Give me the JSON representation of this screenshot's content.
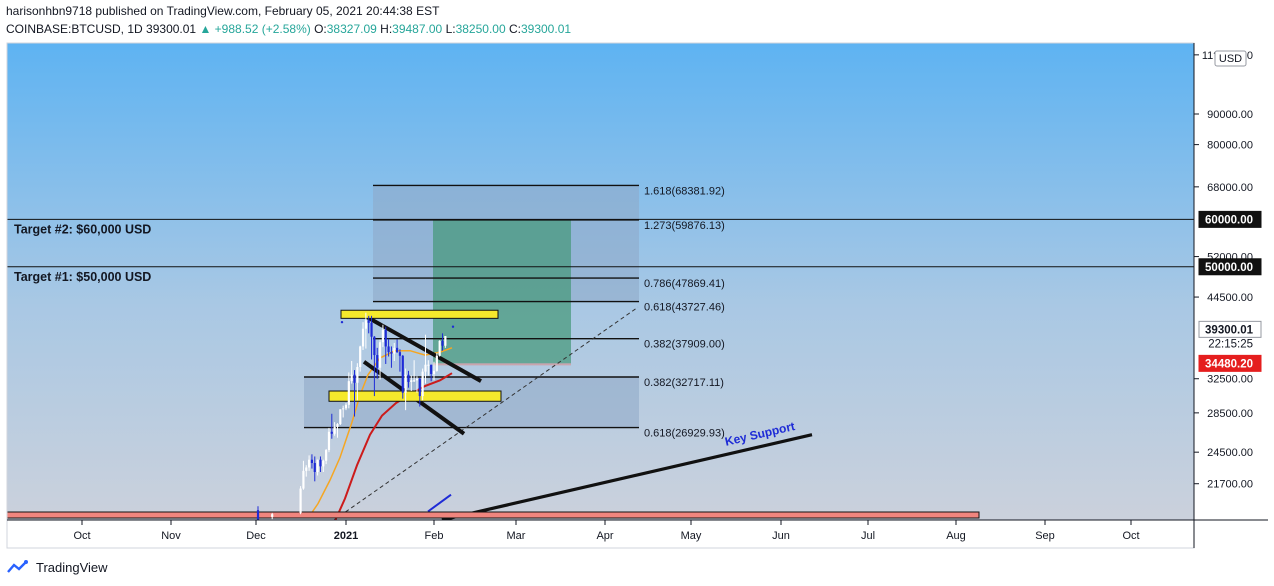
{
  "header": {
    "publisher": "harisonhbn9718 published on TradingView.com, February 05, 2021 20:44:38 EST",
    "symbol": "COINBASE:BTCUSD, 1D",
    "last": "39300.01",
    "change": "▲ +988.52 (+2.58%)",
    "o_label": "O:",
    "o": "38327.09",
    "h_label": "H:",
    "h": "39487.00",
    "l_label": "L:",
    "l": "38250.00",
    "c_label": "C:",
    "c": "39300.01"
  },
  "footer": {
    "brand": "TradingView"
  },
  "colors": {
    "bg_top": "#5fb3f0",
    "bg_bottom": "#c9d0dc",
    "fib_box": "#8ea7c6",
    "target_box": "#4a9a7e",
    "yellow": "#f5e92c",
    "ma_orange": "#f5a623",
    "ma_red": "#cc1b1b",
    "support_pink": "#f0857e",
    "up": "#ffffff",
    "down": "#1e2bd6"
  },
  "chart_data": {
    "type": "candlestick",
    "price_scale": "log",
    "currency_badge": "USD",
    "x_ticks": [
      "Oct",
      "Nov",
      "Dec",
      "2021",
      "Feb",
      "Mar",
      "Apr",
      "May",
      "Jun",
      "Jul",
      "Aug",
      "Sep",
      "Oct"
    ],
    "y_ticks": [
      "11?000.00",
      "90000.00",
      "80000.00",
      "68000.00",
      "52000.00",
      "44500.00",
      "32500.00",
      "28500.00",
      "24500.00",
      "21700.00"
    ],
    "price_labels": [
      {
        "text": "60000.00",
        "value": 60000,
        "style": "black"
      },
      {
        "text": "50000.00",
        "value": 50000,
        "style": "black"
      },
      {
        "text": "39300.01",
        "value": 39300.01,
        "style": "white"
      },
      {
        "text": "22:15:25",
        "value": 37200,
        "style": "plain"
      },
      {
        "text": "34480.20",
        "value": 34480.2,
        "style": "red"
      }
    ],
    "horizontal_lines": [
      {
        "label": "Target #2: $60,000 USD",
        "value": 60000
      },
      {
        "label": "Target #1: $50,000 USD",
        "value": 50000
      }
    ],
    "fib_levels": [
      {
        "label": "1.618(68381.92)",
        "value": 68381.92
      },
      {
        "label": "1.273(59876.13)",
        "value": 59876.13
      },
      {
        "label": "0.786(47869.41)",
        "value": 47869.41
      },
      {
        "label": "0.618(43727.46)",
        "value": 43727.46
      },
      {
        "label": "0.382(37909.00)",
        "value": 37909.0
      },
      {
        "label": "0.382(32717.11)",
        "value": 32717.11
      },
      {
        "label": "0.618(26929.93)",
        "value": 26929.93
      }
    ],
    "annotation": "Key Support",
    "candles": [
      {
        "d": "2020-11-26",
        "o": 17150,
        "h": 17300,
        "l": 16500,
        "c": 17000
      },
      {
        "d": "2020-12-01",
        "o": 19600,
        "h": 19900,
        "l": 18200,
        "c": 18800
      },
      {
        "d": "2020-12-06",
        "o": 19100,
        "h": 19400,
        "l": 18900,
        "c": 19300
      },
      {
        "d": "2020-12-11",
        "o": 18300,
        "h": 18600,
        "l": 17600,
        "c": 18100
      },
      {
        "d": "2020-12-16",
        "o": 19400,
        "h": 21500,
        "l": 19300,
        "c": 21300
      },
      {
        "d": "2020-12-17",
        "o": 21300,
        "h": 23700,
        "l": 21200,
        "c": 22800
      },
      {
        "d": "2020-12-18",
        "o": 22800,
        "h": 23300,
        "l": 22300,
        "c": 23100
      },
      {
        "d": "2020-12-19",
        "o": 23100,
        "h": 24200,
        "l": 22800,
        "c": 23800
      },
      {
        "d": "2020-12-20",
        "o": 23800,
        "h": 24300,
        "l": 23000,
        "c": 23500
      },
      {
        "d": "2020-12-21",
        "o": 23500,
        "h": 24100,
        "l": 21900,
        "c": 22700
      },
      {
        "d": "2020-12-22",
        "o": 22700,
        "h": 23800,
        "l": 22400,
        "c": 23800
      },
      {
        "d": "2020-12-23",
        "o": 23800,
        "h": 24100,
        "l": 22700,
        "c": 23200
      },
      {
        "d": "2020-12-24",
        "o": 23200,
        "h": 23800,
        "l": 22700,
        "c": 23700
      },
      {
        "d": "2020-12-25",
        "o": 23700,
        "h": 24800,
        "l": 23400,
        "c": 24700
      },
      {
        "d": "2020-12-26",
        "o": 24700,
        "h": 26900,
        "l": 24500,
        "c": 26500
      },
      {
        "d": "2020-12-27",
        "o": 26500,
        "h": 28400,
        "l": 25800,
        "c": 26300
      },
      {
        "d": "2020-12-28",
        "o": 26300,
        "h": 27500,
        "l": 26100,
        "c": 27000
      },
      {
        "d": "2020-12-29",
        "o": 27000,
        "h": 27400,
        "l": 25900,
        "c": 27300
      },
      {
        "d": "2020-12-30",
        "o": 27300,
        "h": 28900,
        "l": 27200,
        "c": 28900
      },
      {
        "d": "2020-12-31",
        "o": 28900,
        "h": 29300,
        "l": 28000,
        "c": 29000
      },
      {
        "d": "2021-01-01",
        "o": 29000,
        "h": 29600,
        "l": 28800,
        "c": 29400
      },
      {
        "d": "2021-01-02",
        "o": 29400,
        "h": 33300,
        "l": 29000,
        "c": 32200
      },
      {
        "d": "2021-01-03",
        "o": 32200,
        "h": 34800,
        "l": 31900,
        "c": 33000
      },
      {
        "d": "2021-01-04",
        "o": 33000,
        "h": 33600,
        "l": 28100,
        "c": 32000
      },
      {
        "d": "2021-01-05",
        "o": 32000,
        "h": 34500,
        "l": 29900,
        "c": 34000
      },
      {
        "d": "2021-01-06",
        "o": 34000,
        "h": 36900,
        "l": 33400,
        "c": 36800
      },
      {
        "d": "2021-01-07",
        "o": 36800,
        "h": 40400,
        "l": 36300,
        "c": 39400
      },
      {
        "d": "2021-01-08",
        "o": 39400,
        "h": 41900,
        "l": 36500,
        "c": 40700
      },
      {
        "d": "2021-01-09",
        "o": 40700,
        "h": 41400,
        "l": 38700,
        "c": 40300
      },
      {
        "d": "2021-01-10",
        "o": 40300,
        "h": 41400,
        "l": 35000,
        "c": 38200
      },
      {
        "d": "2021-01-11",
        "o": 38200,
        "h": 38300,
        "l": 30400,
        "c": 35600
      },
      {
        "d": "2021-01-12",
        "o": 35600,
        "h": 36600,
        "l": 32500,
        "c": 33900
      },
      {
        "d": "2021-01-13",
        "o": 33900,
        "h": 37800,
        "l": 32400,
        "c": 37400
      },
      {
        "d": "2021-01-14",
        "o": 37400,
        "h": 40000,
        "l": 36700,
        "c": 39200
      },
      {
        "d": "2021-01-15",
        "o": 39200,
        "h": 39700,
        "l": 34400,
        "c": 36800
      },
      {
        "d": "2021-01-16",
        "o": 36800,
        "h": 37900,
        "l": 35400,
        "c": 36000
      },
      {
        "d": "2021-01-17",
        "o": 36000,
        "h": 36800,
        "l": 33900,
        "c": 35800
      },
      {
        "d": "2021-01-18",
        "o": 35800,
        "h": 37300,
        "l": 34800,
        "c": 36600
      },
      {
        "d": "2021-01-19",
        "o": 36600,
        "h": 37800,
        "l": 35900,
        "c": 36000
      },
      {
        "d": "2021-01-20",
        "o": 36000,
        "h": 36400,
        "l": 33400,
        "c": 35500
      },
      {
        "d": "2021-01-21",
        "o": 35500,
        "h": 35600,
        "l": 30100,
        "c": 30800
      },
      {
        "d": "2021-01-22",
        "o": 30800,
        "h": 33800,
        "l": 28800,
        "c": 33000
      },
      {
        "d": "2021-01-23",
        "o": 33000,
        "h": 33500,
        "l": 31400,
        "c": 32100
      },
      {
        "d": "2021-01-24",
        "o": 32100,
        "h": 32900,
        "l": 31000,
        "c": 32300
      },
      {
        "d": "2021-01-25",
        "o": 32300,
        "h": 34900,
        "l": 32100,
        "c": 32300
      },
      {
        "d": "2021-01-26",
        "o": 32300,
        "h": 32800,
        "l": 30800,
        "c": 32500
      },
      {
        "d": "2021-01-27",
        "o": 32500,
        "h": 32600,
        "l": 29200,
        "c": 30400
      },
      {
        "d": "2021-01-28",
        "o": 30400,
        "h": 33800,
        "l": 29900,
        "c": 33400
      },
      {
        "d": "2021-01-29",
        "o": 33400,
        "h": 38500,
        "l": 31900,
        "c": 34300
      },
      {
        "d": "2021-01-30",
        "o": 34300,
        "h": 34900,
        "l": 32900,
        "c": 34300
      },
      {
        "d": "2021-01-31",
        "o": 34300,
        "h": 34300,
        "l": 32200,
        "c": 33100
      },
      {
        "d": "2021-02-01",
        "o": 33100,
        "h": 34700,
        "l": 32300,
        "c": 33500
      },
      {
        "d": "2021-02-02",
        "o": 33500,
        "h": 35900,
        "l": 33400,
        "c": 35500
      },
      {
        "d": "2021-02-03",
        "o": 35500,
        "h": 37700,
        "l": 35400,
        "c": 37600
      },
      {
        "d": "2021-02-04",
        "o": 37600,
        "h": 38700,
        "l": 36200,
        "c": 36900
      },
      {
        "d": "2021-02-05",
        "o": 36900,
        "h": 38300,
        "l": 36600,
        "c": 38300
      }
    ]
  }
}
